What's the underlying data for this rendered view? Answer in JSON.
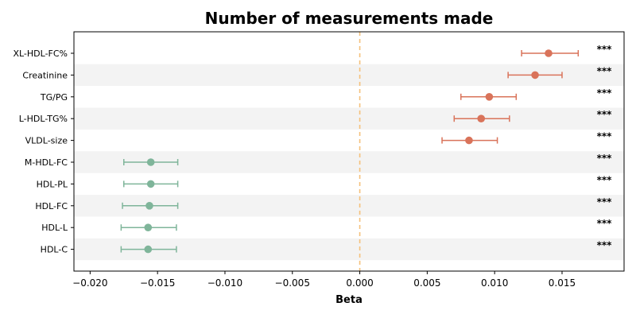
{
  "chart_data": {
    "type": "scatter",
    "subtype": "forest-plot",
    "title": "Number of measurements made",
    "xlabel": "Beta",
    "ylabel": "",
    "xlim": [
      -0.0212,
      0.0196
    ],
    "xticks": [
      -0.02,
      -0.015,
      -0.01,
      -0.005,
      0.0,
      0.005,
      0.01,
      0.015
    ],
    "xtick_labels": [
      "−0.020",
      "−0.015",
      "−0.010",
      "−0.005",
      "0.000",
      "0.005",
      "0.010",
      "0.015"
    ],
    "reference_line": 0.0,
    "row_shading": "alternating",
    "grid": false,
    "legend": "none",
    "colors": {
      "positive": "#d9735a",
      "negative": "#7fb59a",
      "reference_line": "#f5c07a",
      "row_shade": "#f3f3f3"
    },
    "rows": [
      {
        "label": "XL-HDL-FC%",
        "beta": 0.014,
        "ci_low": 0.012,
        "ci_high": 0.0162,
        "significance": "***"
      },
      {
        "label": "Creatinine",
        "beta": 0.013,
        "ci_low": 0.011,
        "ci_high": 0.015,
        "significance": "***"
      },
      {
        "label": "TG/PG",
        "beta": 0.0096,
        "ci_low": 0.0075,
        "ci_high": 0.0116,
        "significance": "***"
      },
      {
        "label": "L-HDL-TG%",
        "beta": 0.009,
        "ci_low": 0.007,
        "ci_high": 0.0111,
        "significance": "***"
      },
      {
        "label": "VLDL-size",
        "beta": 0.0081,
        "ci_low": 0.0061,
        "ci_high": 0.0102,
        "significance": "***"
      },
      {
        "label": "M-HDL-FC",
        "beta": -0.0155,
        "ci_low": -0.0175,
        "ci_high": -0.0135,
        "significance": "***"
      },
      {
        "label": "HDL-PL",
        "beta": -0.0155,
        "ci_low": -0.0175,
        "ci_high": -0.0135,
        "significance": "***"
      },
      {
        "label": "HDL-FC",
        "beta": -0.0156,
        "ci_low": -0.0176,
        "ci_high": -0.0135,
        "significance": "***"
      },
      {
        "label": "HDL-L",
        "beta": -0.0157,
        "ci_low": -0.0177,
        "ci_high": -0.0136,
        "significance": "***"
      },
      {
        "label": "HDL-C",
        "beta": -0.0157,
        "ci_low": -0.0177,
        "ci_high": -0.0136,
        "significance": "***"
      }
    ]
  }
}
